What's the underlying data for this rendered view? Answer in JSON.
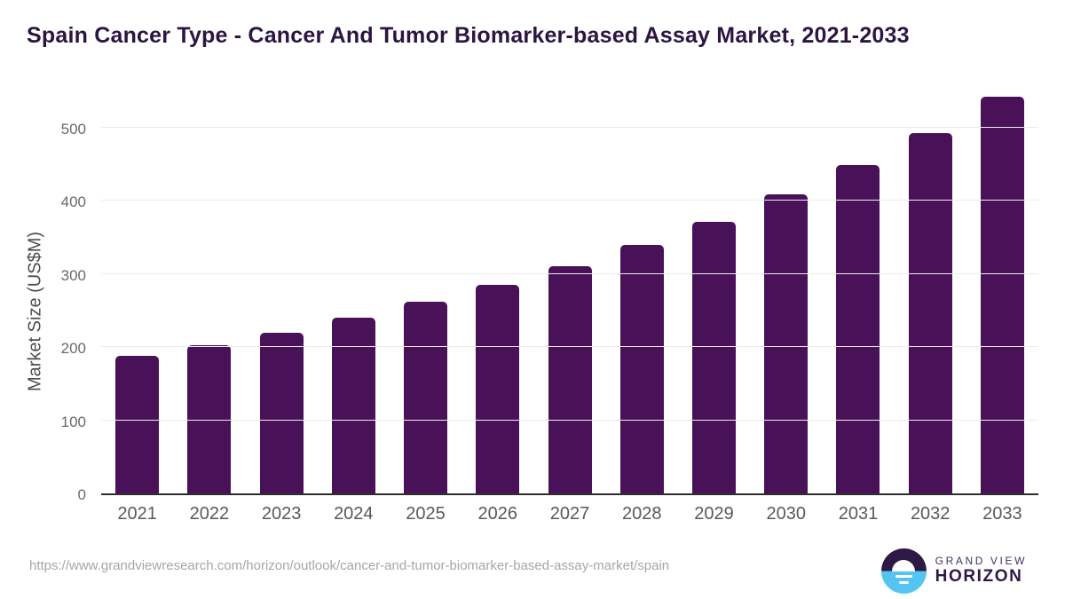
{
  "title": "Spain Cancer Type - Cancer And Tumor Biomarker-based Assay Market, 2021-2033",
  "chart_data": {
    "type": "bar",
    "title": "Spain Cancer Type - Cancer And Tumor Biomarker-based Assay Market, 2021-2033",
    "categories": [
      "2021",
      "2022",
      "2023",
      "2024",
      "2025",
      "2026",
      "2027",
      "2028",
      "2029",
      "2030",
      "2031",
      "2032",
      "2033"
    ],
    "values": [
      188,
      202,
      220,
      240,
      262,
      285,
      310,
      340,
      371,
      408,
      449,
      492,
      542
    ],
    "xlabel": "",
    "ylabel": "Market Size (US$M)",
    "ylim": [
      0,
      560
    ],
    "yticks": [
      0,
      100,
      200,
      300,
      400,
      500
    ],
    "grid": "horizontal",
    "legend": false,
    "bar_color": "#491157"
  },
  "colors": {
    "bar": "#491157",
    "title_text": "#2b1542",
    "axis_line": "#2e2e2e",
    "gridline": "#ececec",
    "tick_label": "#58595b",
    "url_text": "#a6a6a6",
    "logo_purple": "#2d1945",
    "logo_blue": "#53c5f0"
  },
  "footer": {
    "url": "https://www.grandviewresearch.com/horizon/outlook/cancer-and-tumor-biomarker-based-assay-market/spain",
    "logo_line1": "GRAND VIEW",
    "logo_line2": "HORIZON",
    "logo_icon": "horizon-sun-circle"
  }
}
